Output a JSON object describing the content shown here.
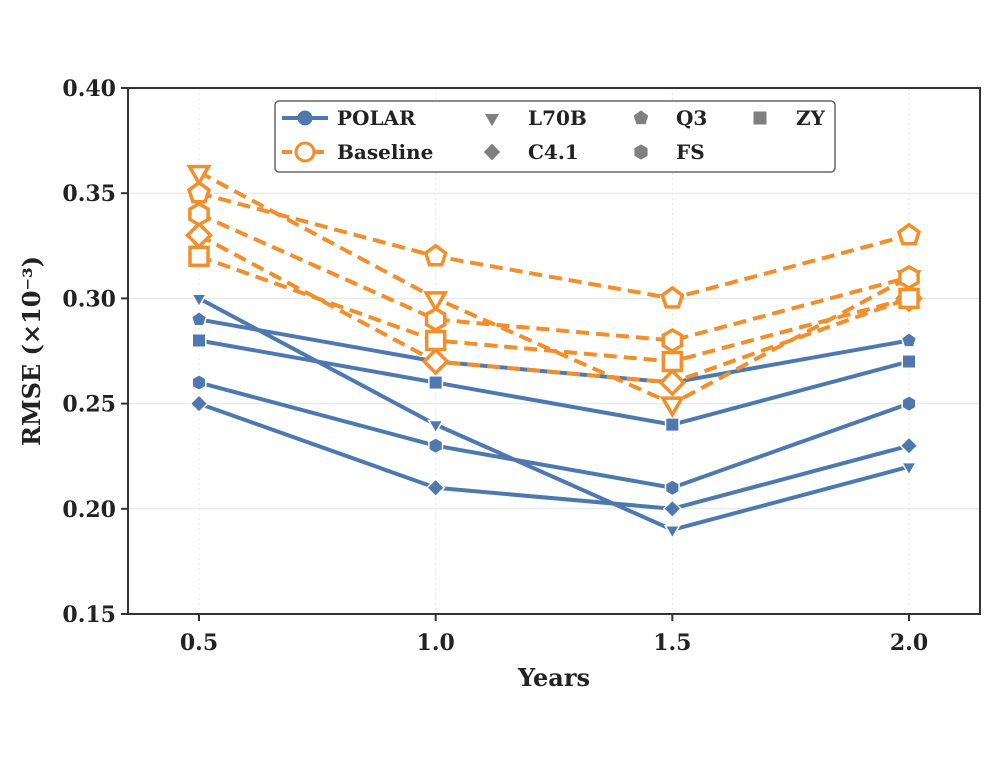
{
  "chart_data": {
    "type": "line",
    "title": "",
    "xlabel": "Years",
    "ylabel": "RMSE (×10⁻³)",
    "x": [
      0.5,
      1.0,
      1.5,
      2.0
    ],
    "x_tick_labels": [
      "0.5",
      "1.0",
      "1.5",
      "2.0"
    ],
    "xlim": [
      0.35,
      2.15
    ],
    "ylim": [
      0.15,
      0.4
    ],
    "y_ticks": [
      0.15,
      0.2,
      0.25,
      0.3,
      0.35,
      0.4
    ],
    "y_tick_labels": [
      "0.15",
      "0.20",
      "0.25",
      "0.30",
      "0.35",
      "0.40"
    ],
    "grid": true,
    "legend_position": "top-center",
    "colors": {
      "polar": "#4e79b0",
      "baseline": "#f28e2b",
      "legend_gray": "#808080",
      "axis": "#333333",
      "grid": "#e6e6e6"
    },
    "legend": {
      "methods": [
        {
          "key": "polar",
          "label": "POLAR",
          "style": "solid",
          "marker": "circle-filled"
        },
        {
          "key": "baseline",
          "label": "Baseline",
          "style": "dashed",
          "marker": "circle-open"
        }
      ],
      "models": [
        {
          "label": "L70B",
          "marker": "triangle-down"
        },
        {
          "label": "C4.1",
          "marker": "diamond"
        },
        {
          "label": "Q3",
          "marker": "pentagon"
        },
        {
          "label": "FS",
          "marker": "hexagon"
        },
        {
          "label": "ZY",
          "marker": "square"
        }
      ]
    },
    "series": [
      {
        "name": "POLAR L70B",
        "method": "polar",
        "marker": "triangle-down",
        "values": [
          0.3,
          0.24,
          0.19,
          0.22
        ]
      },
      {
        "name": "POLAR C4.1",
        "method": "polar",
        "marker": "diamond",
        "values": [
          0.25,
          0.21,
          0.2,
          0.23
        ]
      },
      {
        "name": "POLAR Q3",
        "method": "polar",
        "marker": "pentagon",
        "values": [
          0.29,
          0.27,
          0.26,
          0.28
        ]
      },
      {
        "name": "POLAR FS",
        "method": "polar",
        "marker": "hexagon",
        "values": [
          0.26,
          0.23,
          0.21,
          0.25
        ]
      },
      {
        "name": "POLAR ZY",
        "method": "polar",
        "marker": "square",
        "values": [
          0.28,
          0.26,
          0.24,
          0.27
        ]
      },
      {
        "name": "Baseline L70B",
        "method": "baseline",
        "marker": "triangle-down",
        "values": [
          0.36,
          0.3,
          0.25,
          0.31
        ]
      },
      {
        "name": "Baseline C4.1",
        "method": "baseline",
        "marker": "diamond",
        "values": [
          0.33,
          0.27,
          0.26,
          0.3
        ]
      },
      {
        "name": "Baseline Q3",
        "method": "baseline",
        "marker": "pentagon",
        "values": [
          0.35,
          0.32,
          0.3,
          0.33
        ]
      },
      {
        "name": "Baseline FS",
        "method": "baseline",
        "marker": "hexagon",
        "values": [
          0.34,
          0.29,
          0.28,
          0.31
        ]
      },
      {
        "name": "Baseline ZY",
        "method": "baseline",
        "marker": "square",
        "values": [
          0.32,
          0.28,
          0.27,
          0.3
        ]
      }
    ]
  }
}
